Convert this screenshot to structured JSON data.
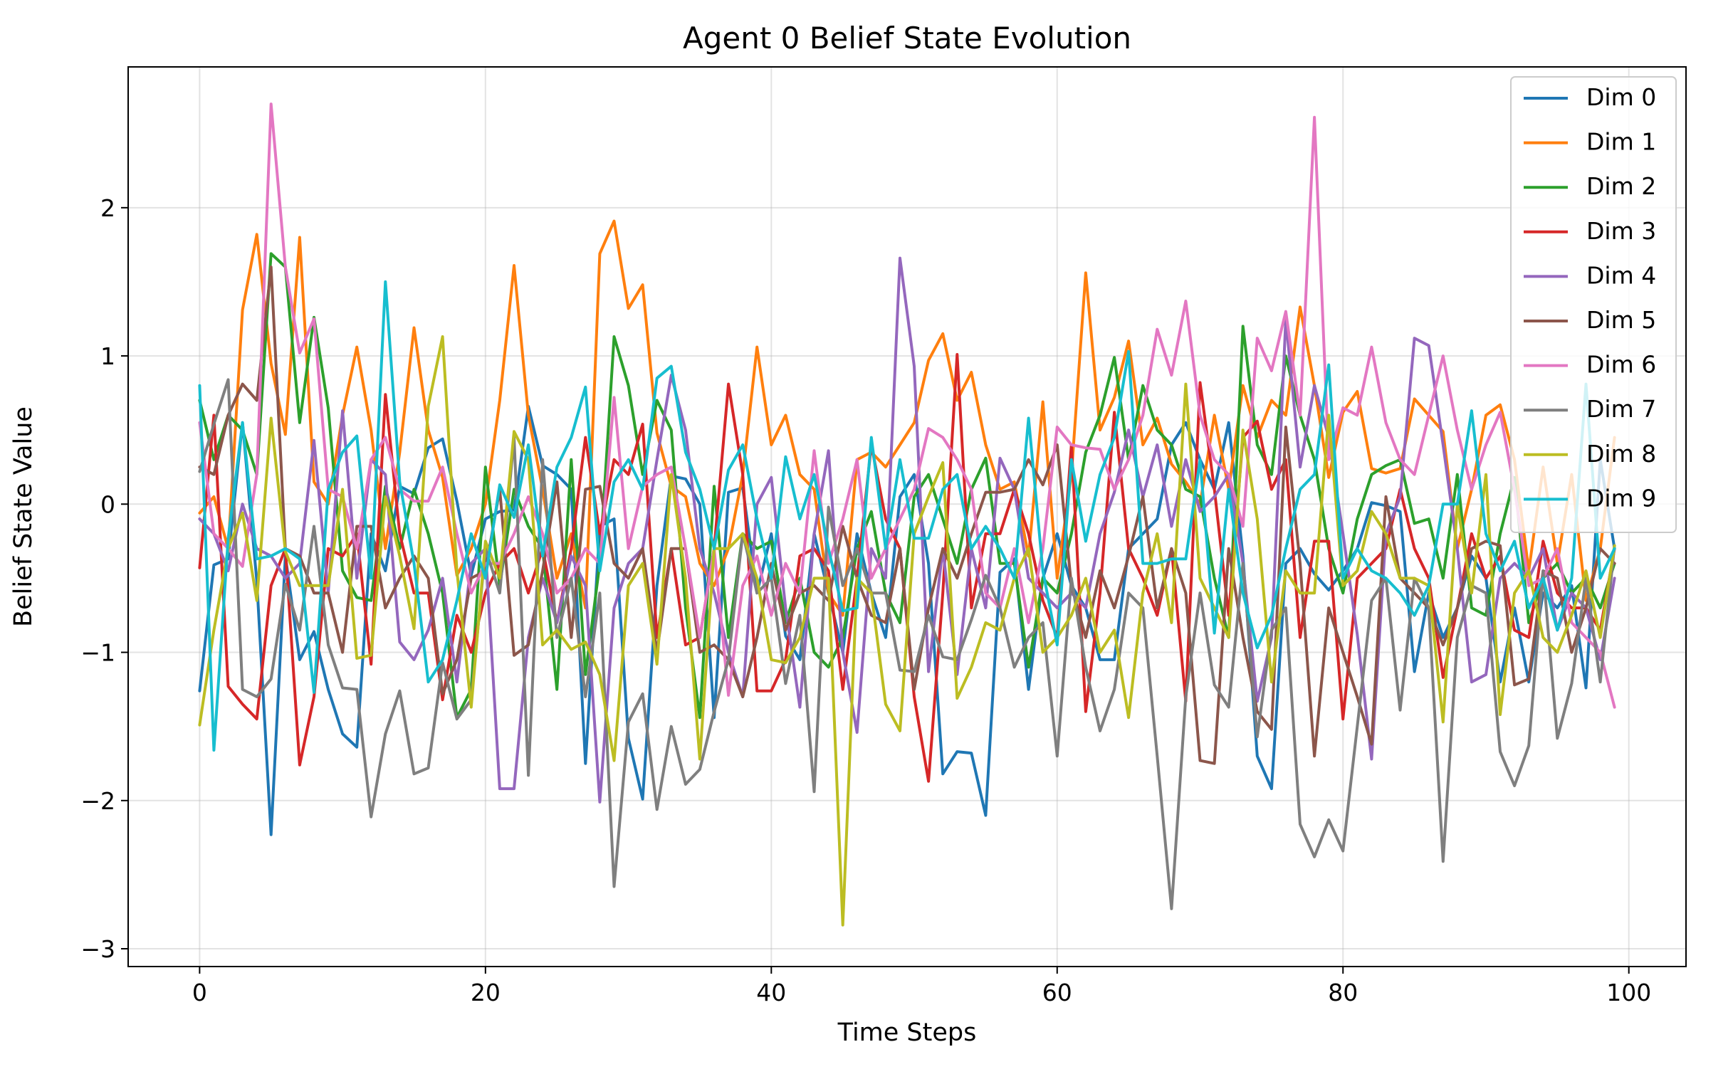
{
  "chart_data": {
    "type": "line",
    "title": "Agent 0 Belief State Evolution",
    "xlabel": "Time Steps",
    "ylabel": "Belief State Value",
    "xlim": [
      -5,
      104
    ],
    "ylim": [
      -3.12,
      2.95
    ],
    "xticks": [
      0,
      20,
      40,
      60,
      80,
      100
    ],
    "yticks": [
      -3,
      -2,
      -1,
      0,
      1,
      2
    ],
    "xtick_labels": [
      "0",
      "20",
      "40",
      "60",
      "80",
      "100"
    ],
    "ytick_labels": [
      "−3",
      "−2",
      "−1",
      "0",
      "1",
      "2"
    ],
    "grid": true,
    "legend_position": "top-right",
    "colors": [
      "#1f77b4",
      "#ff7f0e",
      "#2ca02c",
      "#d62728",
      "#9467bd",
      "#8c564b",
      "#e377c2",
      "#7f7f7f",
      "#bcbd22",
      "#17becf"
    ],
    "x": [
      0,
      1,
      2,
      3,
      4,
      5,
      6,
      7,
      8,
      9,
      10,
      11,
      12,
      13,
      14,
      15,
      16,
      17,
      18,
      19,
      20,
      21,
      22,
      23,
      24,
      25,
      26,
      27,
      28,
      29,
      30,
      31,
      32,
      33,
      34,
      35,
      36,
      37,
      38,
      39,
      40,
      41,
      42,
      43,
      44,
      45,
      46,
      47,
      48,
      49,
      50,
      51,
      52,
      53,
      54,
      55,
      56,
      57,
      58,
      59,
      60,
      61,
      62,
      63,
      64,
      65,
      66,
      67,
      68,
      69,
      70,
      71,
      72,
      73,
      74,
      75,
      76,
      77,
      78,
      79,
      80,
      81,
      82,
      83,
      84,
      85,
      86,
      87,
      88,
      89,
      90,
      91,
      92,
      93,
      94,
      95,
      96,
      97,
      98,
      99
    ],
    "series": [
      {
        "name": "Dim 0",
        "values": [
          -1.26,
          -0.41,
          -0.37,
          0.55,
          -0.52,
          -2.23,
          -0.35,
          -1.05,
          -0.86,
          -1.25,
          -1.55,
          -1.64,
          -0.2,
          -0.45,
          0.12,
          0.07,
          0.38,
          0.44,
          0.02,
          -0.48,
          -0.1,
          -0.05,
          -0.04,
          0.66,
          0.26,
          0.2,
          0.1,
          -1.75,
          -0.15,
          -0.1,
          -1.58,
          -1.99,
          -0.55,
          0.19,
          0.17,
          0.0,
          -1.44,
          0.08,
          0.11,
          -0.6,
          -0.2,
          -0.89,
          -1.05,
          -0.2,
          -0.6,
          -1.0,
          -0.2,
          -0.6,
          -0.9,
          0.05,
          0.2,
          -0.4,
          -1.82,
          -1.67,
          -1.68,
          -2.1,
          -0.46,
          -0.37,
          -1.25,
          -0.5,
          -0.2,
          -0.55,
          -0.7,
          -1.05,
          -1.05,
          -0.3,
          -0.2,
          -0.1,
          0.4,
          0.55,
          0.3,
          0.1,
          0.55,
          -0.35,
          -1.7,
          -1.92,
          -0.4,
          -0.3,
          -0.47,
          -0.58,
          -0.45,
          -0.3,
          0.01,
          -0.01,
          -0.05,
          -1.13,
          -0.6,
          -0.9,
          -0.7,
          -0.35,
          -0.5,
          -1.2,
          -0.7,
          -1.2,
          -0.6,
          -0.7,
          -0.55,
          -1.24,
          0.3,
          -0.3
        ]
      },
      {
        "name": "Dim 1",
        "values": [
          -0.06,
          0.05,
          -0.3,
          1.31,
          1.82,
          0.95,
          0.47,
          1.8,
          0.15,
          0.0,
          0.6,
          1.06,
          0.5,
          -0.3,
          0.35,
          1.19,
          0.5,
          0.18,
          -0.48,
          -0.3,
          0.0,
          0.7,
          1.61,
          0.6,
          0.1,
          -0.5,
          -0.2,
          -0.7,
          1.69,
          1.91,
          1.32,
          1.48,
          0.48,
          0.12,
          0.05,
          -0.4,
          -0.55,
          -0.3,
          0.2,
          1.06,
          0.4,
          0.6,
          0.2,
          0.1,
          -0.6,
          -0.75,
          0.3,
          0.35,
          0.25,
          0.4,
          0.55,
          0.97,
          1.15,
          0.7,
          0.89,
          0.4,
          0.1,
          0.15,
          -0.35,
          0.69,
          -0.5,
          0.2,
          1.56,
          0.5,
          0.72,
          1.1,
          0.4,
          0.58,
          0.27,
          0.15,
          0.0,
          0.6,
          0.1,
          0.8,
          0.45,
          0.7,
          0.6,
          1.33,
          0.8,
          0.18,
          0.62,
          0.76,
          0.24,
          0.21,
          0.24,
          0.71,
          0.6,
          0.49,
          -0.3,
          0.1,
          0.6,
          0.67,
          0.3,
          -0.45,
          0.25,
          -0.4,
          0.2,
          -0.65,
          -0.3,
          0.45
        ]
      },
      {
        "name": "Dim 2",
        "values": [
          0.7,
          0.3,
          0.6,
          0.5,
          0.2,
          1.69,
          1.6,
          0.55,
          1.26,
          0.65,
          -0.45,
          -0.63,
          -0.65,
          0.12,
          -0.3,
          0.1,
          -0.2,
          -0.6,
          -1.44,
          -1.25,
          0.25,
          -0.55,
          0.1,
          -0.15,
          -0.3,
          -1.25,
          0.3,
          -1.15,
          -0.4,
          1.13,
          0.8,
          0.2,
          0.7,
          0.5,
          -0.7,
          -1.44,
          0.12,
          -0.9,
          -0.2,
          -0.3,
          -0.25,
          -0.8,
          -0.5,
          -1.0,
          -1.1,
          -0.9,
          -0.3,
          -0.05,
          -0.6,
          -0.8,
          0.05,
          0.2,
          -0.1,
          -0.4,
          0.1,
          0.31,
          -0.4,
          -0.4,
          -1.1,
          -0.5,
          -0.6,
          -0.2,
          0.35,
          0.6,
          0.99,
          0.3,
          0.8,
          0.5,
          0.4,
          0.1,
          0.05,
          -0.5,
          -0.9,
          1.2,
          0.4,
          0.2,
          1.0,
          0.6,
          0.3,
          -0.3,
          -0.6,
          -0.1,
          0.2,
          0.26,
          0.3,
          -0.13,
          -0.1,
          -0.5,
          0.2,
          -0.7,
          -0.75,
          -0.2,
          0.18,
          -0.8,
          -0.5,
          -0.4,
          -0.6,
          -0.5,
          -0.7,
          -0.4
        ]
      },
      {
        "name": "Dim 3",
        "values": [
          -0.43,
          0.6,
          -1.23,
          -1.35,
          -1.45,
          -0.55,
          -0.3,
          -1.76,
          -1.3,
          -0.3,
          -0.35,
          -0.2,
          -1.08,
          0.74,
          -0.2,
          -0.6,
          -0.6,
          -1.32,
          -0.75,
          -1.0,
          -0.6,
          -0.4,
          -0.3,
          -0.6,
          -0.3,
          -0.8,
          -0.3,
          0.45,
          -0.2,
          0.3,
          0.2,
          0.54,
          -0.9,
          -0.3,
          -0.95,
          -0.9,
          -0.3,
          0.81,
          0.2,
          -1.26,
          -1.26,
          -1.05,
          -0.35,
          -0.3,
          -0.45,
          -1.25,
          -0.5,
          0.4,
          -0.1,
          -0.3,
          -1.3,
          -1.87,
          -0.6,
          1.01,
          -0.7,
          -0.2,
          -0.2,
          0.1,
          -0.2,
          -0.65,
          -0.9,
          0.4,
          -1.4,
          -0.6,
          0.62,
          -0.3,
          -0.5,
          -0.75,
          -0.3,
          -1.33,
          0.82,
          0.1,
          -0.75,
          0.45,
          0.56,
          0.1,
          0.3,
          -0.9,
          -0.25,
          -0.25,
          -1.45,
          -0.5,
          -0.4,
          -0.3,
          0.1,
          -0.3,
          -0.5,
          -1.17,
          -0.7,
          -0.2,
          -0.5,
          -0.35,
          -0.85,
          -0.9,
          -0.25,
          -0.6,
          -0.7,
          -0.7,
          -0.85,
          -0.3
        ]
      },
      {
        "name": "Dim 4",
        "values": [
          -0.1,
          -0.2,
          -0.45,
          0.0,
          -0.3,
          -0.35,
          -0.5,
          -0.4,
          0.43,
          -0.6,
          0.63,
          -0.5,
          0.3,
          0.2,
          -0.93,
          -1.05,
          -0.85,
          -0.5,
          -1.2,
          -0.4,
          -0.3,
          -1.92,
          -1.92,
          -0.9,
          -0.5,
          -0.8,
          -0.35,
          -0.55,
          -2.01,
          -0.7,
          -0.4,
          -0.3,
          0.3,
          0.87,
          0.5,
          -0.3,
          -0.6,
          -1.0,
          -1.3,
          0.0,
          0.18,
          -0.7,
          -1.37,
          -0.2,
          0.36,
          -1.0,
          -1.54,
          -0.3,
          -0.5,
          1.66,
          0.93,
          -1.13,
          -0.3,
          -1.15,
          -0.3,
          -0.7,
          0.31,
          0.1,
          -0.5,
          -0.6,
          -0.7,
          -0.6,
          -0.7,
          -0.2,
          0.08,
          0.5,
          0.05,
          0.4,
          -0.15,
          0.3,
          -0.05,
          0.05,
          0.2,
          -0.4,
          -1.33,
          -0.9,
          1.25,
          0.25,
          0.8,
          0.45,
          -0.2,
          -0.88,
          -1.72,
          -0.2,
          0.05,
          1.12,
          1.07,
          0.4,
          -0.3,
          -1.2,
          -1.15,
          -0.5,
          -0.4,
          -0.5,
          -0.3,
          -0.85,
          -0.6,
          -0.7,
          -1.05,
          -0.5
        ]
      },
      {
        "name": "Dim 5",
        "values": [
          0.25,
          0.2,
          0.6,
          0.81,
          0.7,
          1.6,
          -0.3,
          -0.35,
          -0.6,
          -0.6,
          -1.0,
          -0.15,
          -0.15,
          -0.7,
          -0.5,
          -0.35,
          -0.5,
          -1.28,
          -1.05,
          -0.5,
          -0.45,
          0.1,
          -1.02,
          -0.95,
          -0.45,
          0.15,
          -0.9,
          0.1,
          0.12,
          -0.4,
          -0.5,
          -0.3,
          -1.0,
          -0.3,
          -0.3,
          -1.0,
          -0.95,
          -1.05,
          -1.3,
          -0.9,
          -0.4,
          -0.85,
          -0.6,
          -0.55,
          -0.65,
          -0.15,
          -0.5,
          -0.75,
          -0.8,
          -0.3,
          -1.25,
          -0.7,
          -0.3,
          -0.5,
          -0.2,
          0.08,
          0.08,
          0.1,
          0.3,
          0.13,
          0.4,
          -0.55,
          -0.9,
          -0.45,
          -0.7,
          -0.35,
          0.05,
          -0.7,
          -0.3,
          -0.6,
          -1.73,
          -1.75,
          -0.3,
          -0.9,
          -1.4,
          -1.52,
          0.52,
          -0.4,
          -1.7,
          -0.7,
          -1.0,
          -1.3,
          -1.62,
          0.05,
          -0.5,
          -0.6,
          -0.7,
          -0.95,
          -0.7,
          -0.3,
          -0.25,
          -0.28,
          -1.22,
          -1.18,
          -0.45,
          -0.5,
          -1.0,
          -0.7,
          -0.3,
          -0.4
        ]
      },
      {
        "name": "Dim 6",
        "values": [
          0.55,
          -0.2,
          -0.3,
          -0.42,
          0.2,
          2.7,
          1.6,
          1.02,
          1.25,
          0.1,
          0.05,
          -0.3,
          0.3,
          0.45,
          0.1,
          0.02,
          0.02,
          0.25,
          -0.2,
          -0.6,
          -0.4,
          -0.4,
          -0.2,
          0.05,
          -0.2,
          -0.6,
          -0.5,
          -0.3,
          -0.4,
          0.72,
          -0.3,
          0.12,
          0.2,
          0.25,
          -0.3,
          -0.9,
          -0.3,
          -1.29,
          -0.55,
          -0.35,
          -0.75,
          -0.4,
          -0.6,
          0.36,
          -0.4,
          -0.1,
          0.3,
          -0.5,
          -0.3,
          -0.1,
          0.1,
          0.51,
          0.45,
          0.3,
          0.1,
          -0.6,
          -0.7,
          -0.3,
          -0.8,
          -0.3,
          0.52,
          0.4,
          0.38,
          0.37,
          0.1,
          0.3,
          0.6,
          1.18,
          0.87,
          1.37,
          0.6,
          0.3,
          0.2,
          -0.15,
          1.12,
          0.9,
          1.3,
          0.6,
          2.61,
          0.3,
          0.65,
          0.6,
          1.06,
          0.55,
          0.3,
          0.2,
          0.6,
          1.0,
          0.5,
          0.1,
          0.4,
          0.62,
          0.1,
          -0.55,
          -0.5,
          -0.3,
          -0.8,
          -0.9,
          -1.0,
          -1.37
        ]
      },
      {
        "name": "Dim 7",
        "values": [
          0.22,
          0.54,
          0.84,
          -1.25,
          -1.3,
          -1.18,
          -0.54,
          -0.85,
          -0.15,
          -0.95,
          -1.24,
          -1.25,
          -2.11,
          -1.55,
          -1.26,
          -1.82,
          -1.78,
          -1.07,
          -1.45,
          -1.32,
          -0.3,
          -0.6,
          0.45,
          -1.83,
          0.3,
          -0.9,
          -0.5,
          -1.3,
          -0.6,
          -2.58,
          -1.47,
          -1.28,
          -2.06,
          -1.5,
          -1.89,
          -1.79,
          -1.4,
          -1.05,
          -0.2,
          -0.6,
          -0.5,
          -1.21,
          -0.75,
          -1.94,
          -0.02,
          -0.55,
          -0.3,
          -0.6,
          -0.6,
          -1.12,
          -1.13,
          -0.75,
          -1.03,
          -1.05,
          -0.78,
          -0.48,
          -0.7,
          -1.1,
          -0.9,
          -0.8,
          -1.7,
          -0.5,
          -1.1,
          -1.53,
          -1.25,
          -0.6,
          -0.7,
          -1.7,
          -2.73,
          -1.3,
          -0.6,
          -1.22,
          -1.37,
          -0.4,
          -1.57,
          -0.85,
          -0.7,
          -2.16,
          -2.38,
          -2.13,
          -2.34,
          -1.5,
          -0.65,
          -0.5,
          -1.39,
          -0.5,
          -0.7,
          -2.41,
          -0.9,
          -0.55,
          -0.6,
          -1.67,
          -1.9,
          -1.63,
          -0.45,
          -1.58,
          -1.21,
          -0.5,
          -1.2,
          -0.28
        ]
      },
      {
        "name": "Dim 8",
        "values": [
          -1.49,
          -0.85,
          -0.3,
          -0.06,
          -0.65,
          0.58,
          -0.32,
          -0.55,
          -0.55,
          -0.55,
          0.1,
          -1.04,
          -1.02,
          0.05,
          -0.35,
          -0.84,
          0.66,
          1.13,
          -0.45,
          -1.37,
          -0.25,
          -0.5,
          0.49,
          0.3,
          -0.95,
          -0.85,
          -0.98,
          -0.93,
          -1.15,
          -1.73,
          -0.55,
          -0.4,
          -1.08,
          0.2,
          -0.5,
          -1.72,
          -0.3,
          -0.3,
          -0.2,
          -0.5,
          -1.05,
          -1.07,
          -0.9,
          -0.5,
          -0.5,
          -2.84,
          -0.5,
          -0.6,
          -1.35,
          -1.53,
          -0.2,
          0.05,
          0.28,
          -1.31,
          -1.1,
          -0.8,
          -0.85,
          -0.5,
          -0.3,
          -1.0,
          -0.9,
          -0.75,
          -0.5,
          -1.0,
          -0.85,
          -1.44,
          -0.6,
          -0.2,
          -0.8,
          0.81,
          -0.5,
          -0.7,
          -0.9,
          0.5,
          -0.1,
          -1.2,
          -0.45,
          -0.6,
          -0.6,
          0.6,
          -0.55,
          -0.45,
          -0.05,
          -0.2,
          -0.5,
          -0.5,
          -0.55,
          -1.47,
          0.0,
          -0.6,
          0.2,
          -1.42,
          -0.6,
          -0.45,
          -0.9,
          -1.0,
          -0.75,
          -0.45,
          -0.9,
          -0.28
        ]
      },
      {
        "name": "Dim 9",
        "values": [
          0.8,
          -1.66,
          -0.23,
          0.55,
          -0.37,
          -0.35,
          -0.3,
          -0.37,
          -1.27,
          0.1,
          0.35,
          0.46,
          -0.5,
          1.5,
          0.15,
          -0.4,
          -1.2,
          -1.05,
          -0.65,
          -0.2,
          -0.5,
          0.13,
          -0.09,
          0.4,
          -0.35,
          0.25,
          0.45,
          0.79,
          -0.45,
          0.15,
          0.3,
          0.1,
          0.85,
          0.93,
          0.35,
          0.1,
          -0.3,
          0.23,
          0.4,
          -0.1,
          -0.5,
          0.32,
          -0.1,
          0.2,
          -0.3,
          -0.72,
          -0.7,
          0.45,
          -0.3,
          0.3,
          -0.23,
          -0.23,
          0.1,
          0.2,
          -0.3,
          -0.15,
          -0.3,
          -0.5,
          0.58,
          -0.45,
          -0.95,
          0.3,
          -0.25,
          0.2,
          0.45,
          1.03,
          -0.4,
          -0.4,
          -0.37,
          -0.37,
          0.3,
          -0.87,
          0.1,
          -0.6,
          -0.97,
          -0.75,
          -0.3,
          0.1,
          0.2,
          0.94,
          -0.5,
          -0.3,
          -0.45,
          -0.5,
          -0.6,
          -0.75,
          -0.55,
          0.0,
          0.0,
          0.63,
          -0.2,
          -0.45,
          -0.25,
          -0.7,
          -0.5,
          -0.85,
          -0.5,
          0.81,
          -0.5,
          -0.3
        ]
      }
    ]
  }
}
